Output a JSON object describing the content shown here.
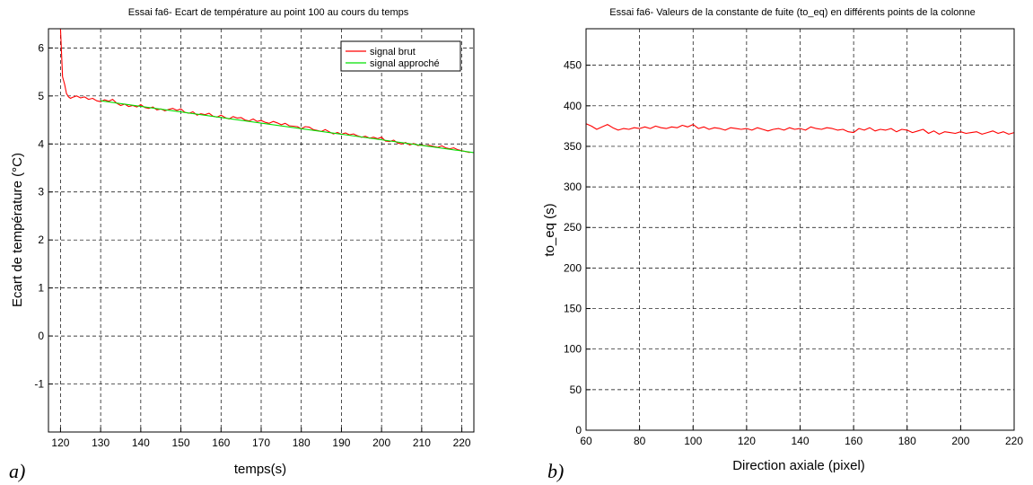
{
  "chart_data": [
    {
      "type": "line",
      "panel_label": "a)",
      "title": "Essai fa6- Ecart de température au point 100 au cours du temps",
      "xlabel": "temps(s)",
      "ylabel": "Ecart de température (°C)",
      "xlim": [
        117,
        223
      ],
      "ylim": [
        -2,
        6.4
      ],
      "xticks": [
        120,
        130,
        140,
        150,
        160,
        170,
        180,
        190,
        200,
        210,
        220
      ],
      "yticks": [
        -1,
        0,
        1,
        2,
        3,
        4,
        5,
        6
      ],
      "grid": true,
      "legend_position": "top-right",
      "series": [
        {
          "name": "signal brut",
          "color": "#ff0000",
          "x": [
            120,
            120.5,
            121,
            121.5,
            122,
            122.5,
            123,
            124,
            125,
            126,
            127,
            128,
            129,
            130,
            131,
            132,
            133,
            134,
            135,
            136,
            137,
            138,
            139,
            140,
            141,
            142,
            143,
            144,
            145,
            146,
            147,
            148,
            149,
            150,
            151,
            152,
            153,
            154,
            155,
            156,
            157,
            158,
            159,
            160,
            161,
            162,
            163,
            164,
            165,
            166,
            167,
            168,
            169,
            170,
            171,
            172,
            173,
            174,
            175,
            176,
            177,
            178,
            179,
            180,
            181,
            182,
            183,
            184,
            185,
            186,
            187,
            188,
            189,
            190,
            191,
            192,
            193,
            194,
            195,
            196,
            197,
            198,
            199,
            200,
            201,
            202,
            203,
            204,
            205,
            206,
            207,
            208,
            209,
            210,
            211,
            212,
            213,
            214,
            215,
            216,
            217,
            218,
            219,
            220,
            221,
            222
          ],
          "y": [
            6.4,
            5.4,
            5.25,
            5.05,
            4.98,
            4.95,
            4.97,
            5.0,
            4.96,
            4.98,
            4.93,
            4.95,
            4.9,
            4.88,
            4.92,
            4.89,
            4.93,
            4.85,
            4.8,
            4.83,
            4.78,
            4.8,
            4.77,
            4.82,
            4.76,
            4.74,
            4.77,
            4.71,
            4.73,
            4.69,
            4.72,
            4.74,
            4.7,
            4.73,
            4.66,
            4.64,
            4.67,
            4.6,
            4.63,
            4.61,
            4.64,
            4.58,
            4.56,
            4.6,
            4.55,
            4.52,
            4.57,
            4.54,
            4.55,
            4.5,
            4.48,
            4.52,
            4.47,
            4.49,
            4.45,
            4.43,
            4.47,
            4.44,
            4.4,
            4.43,
            4.38,
            4.37,
            4.36,
            4.32,
            4.36,
            4.35,
            4.3,
            4.28,
            4.26,
            4.3,
            4.25,
            4.21,
            4.24,
            4.2,
            4.23,
            4.19,
            4.21,
            4.17,
            4.14,
            4.16,
            4.12,
            4.14,
            4.11,
            4.14,
            4.06,
            4.05,
            4.08,
            4.02,
            4.0,
            4.03,
            3.98,
            4.01,
            3.97,
            3.98,
            3.96,
            3.97,
            3.95,
            3.93,
            3.96,
            3.92,
            3.9,
            3.92,
            3.88,
            3.86,
            3.84,
            3.82
          ]
        },
        {
          "name": "signal approché",
          "color": "#00e000",
          "x": [
            130,
            223
          ],
          "y": [
            4.9,
            3.82
          ]
        }
      ]
    },
    {
      "type": "line",
      "panel_label": "b)",
      "title": "Essai fa6- Valeurs de la constante de fuite (to_eq) en différents points de la colonne",
      "xlabel": "Direction axiale (pixel)",
      "ylabel": "to_eq (s)",
      "xlim": [
        60,
        220
      ],
      "ylim": [
        0,
        495
      ],
      "xticks": [
        60,
        80,
        100,
        120,
        140,
        160,
        180,
        200,
        220
      ],
      "yticks": [
        0,
        50,
        100,
        150,
        200,
        250,
        300,
        350,
        400,
        450
      ],
      "grid": true,
      "series": [
        {
          "color": "#ff0000",
          "x": [
            60,
            62,
            64,
            66,
            68,
            70,
            72,
            74,
            76,
            78,
            80,
            82,
            84,
            86,
            88,
            90,
            92,
            94,
            96,
            98,
            100,
            102,
            104,
            106,
            108,
            110,
            112,
            114,
            116,
            118,
            120,
            122,
            124,
            126,
            128,
            130,
            132,
            134,
            136,
            138,
            140,
            142,
            144,
            146,
            148,
            150,
            152,
            154,
            156,
            158,
            160,
            162,
            164,
            166,
            168,
            170,
            172,
            174,
            176,
            178,
            180,
            182,
            184,
            186,
            188,
            190,
            192,
            194,
            196,
            198,
            200,
            202,
            204,
            206,
            208,
            210,
            212,
            214,
            216,
            218,
            220
          ],
          "y": [
            378,
            375,
            371,
            374,
            377,
            373,
            370,
            372,
            371,
            373,
            372,
            374,
            372,
            375,
            373,
            372,
            374,
            373,
            376,
            374,
            377,
            372,
            374,
            371,
            373,
            372,
            370,
            373,
            372,
            371,
            372,
            370,
            373,
            371,
            369,
            371,
            372,
            370,
            373,
            371,
            372,
            370,
            374,
            372,
            371,
            373,
            372,
            370,
            371,
            368,
            367,
            372,
            370,
            373,
            369,
            371,
            370,
            372,
            368,
            371,
            370,
            367,
            369,
            371,
            366,
            369,
            365,
            368,
            367,
            366,
            368,
            366,
            367,
            368,
            365,
            367,
            369,
            366,
            368,
            365,
            367
          ]
        }
      ]
    }
  ]
}
